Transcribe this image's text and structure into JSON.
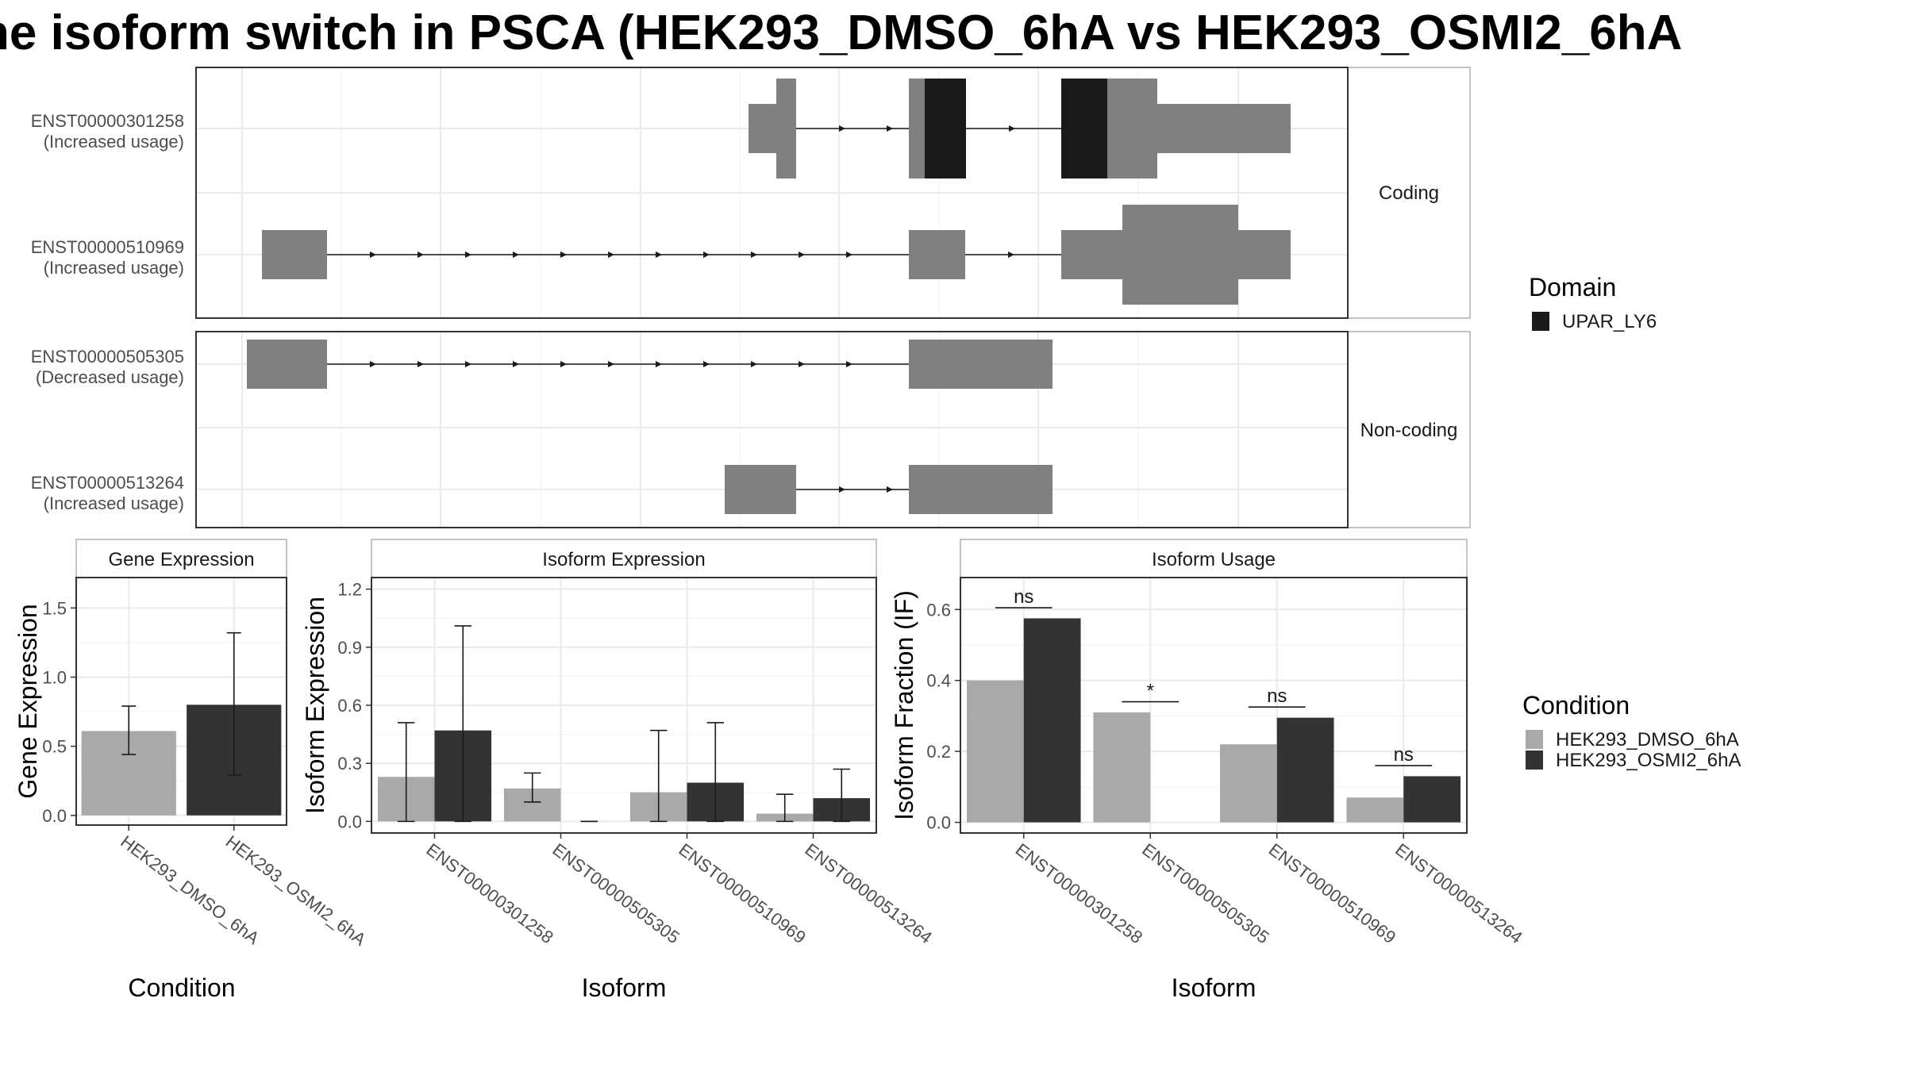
{
  "title": "he isoform switch in PSCA (HEK293_DMSO_6hA vs HEK293_OSMI2_6hA",
  "colors": {
    "exon": "#808080",
    "domain": "#1a1a1a",
    "dmso": "#a9a9a9",
    "osmi": "#333333"
  },
  "structure": {
    "facets": [
      "Coding",
      "Non-coding"
    ],
    "isoforms": [
      {
        "id": "ENST00000301258",
        "status": "(Increased usage)",
        "facet": "Coding"
      },
      {
        "id": "ENST00000510969",
        "status": "(Increased usage)",
        "facet": "Coding"
      },
      {
        "id": "ENST00000505305",
        "status": "(Decreased usage)",
        "facet": "Non-coding"
      },
      {
        "id": "ENST00000513264",
        "status": "(Increased usage)",
        "facet": "Non-coding"
      }
    ]
  },
  "legend_domain": {
    "title": "Domain",
    "items": [
      {
        "label": "UPAR_LY6",
        "color": "#1a1a1a"
      }
    ]
  },
  "legend_condition": {
    "title": "Condition",
    "items": [
      {
        "label": "HEK293_DMSO_6hA",
        "color": "#a9a9a9"
      },
      {
        "label": "HEK293_OSMI2_6hA",
        "color": "#333333"
      }
    ]
  },
  "chart_data": [
    {
      "type": "bar",
      "title": "Gene Expression",
      "xlabel": "Condition",
      "ylabel": "Gene Expression",
      "ylim": [
        -0.07,
        1.72
      ],
      "yticks": [
        0.0,
        0.5,
        1.0,
        1.5
      ],
      "categories": [
        "HEK293_DMSO_6hA",
        "HEK293_OSMI2_6hA"
      ],
      "values": [
        0.61,
        0.8
      ],
      "error_low": [
        0.44,
        0.29
      ],
      "error_high": [
        0.79,
        1.32
      ]
    },
    {
      "type": "bar",
      "title": "Isoform Expression",
      "xlabel": "Isoform",
      "ylabel": "Isoform Expression",
      "ylim": [
        -0.06,
        1.26
      ],
      "yticks": [
        0.0,
        0.3,
        0.6,
        0.9,
        1.2
      ],
      "categories": [
        "ENST00000301258",
        "ENST00000505305",
        "ENST00000510969",
        "ENST00000513264"
      ],
      "series": [
        {
          "name": "HEK293_DMSO_6hA",
          "values": [
            0.23,
            0.17,
            0.15,
            0.04
          ],
          "error_low": [
            0.0,
            0.1,
            0.0,
            0.0
          ],
          "error_high": [
            0.51,
            0.25,
            0.47,
            0.14
          ]
        },
        {
          "name": "HEK293_OSMI2_6hA",
          "values": [
            0.47,
            0.0,
            0.2,
            0.12
          ],
          "error_low": [
            0.0,
            0.0,
            0.0,
            0.0
          ],
          "error_high": [
            1.01,
            0.0,
            0.51,
            0.27
          ]
        }
      ]
    },
    {
      "type": "bar",
      "title": "Isoform Usage",
      "xlabel": "Isoform",
      "ylabel": "Isoform Fraction (IF)",
      "ylim": [
        -0.03,
        0.69
      ],
      "yticks": [
        0.0,
        0.2,
        0.4,
        0.6
      ],
      "categories": [
        "ENST00000301258",
        "ENST00000505305",
        "ENST00000510969",
        "ENST00000513264"
      ],
      "series": [
        {
          "name": "HEK293_DMSO_6hA",
          "values": [
            0.4,
            0.31,
            0.22,
            0.07
          ]
        },
        {
          "name": "HEK293_OSMI2_6hA",
          "values": [
            0.575,
            0.0,
            0.295,
            0.13
          ]
        }
      ],
      "significance": [
        {
          "label": "ns",
          "y": 0.605
        },
        {
          "label": "*",
          "y": 0.34
        },
        {
          "label": "ns",
          "y": 0.325
        },
        {
          "label": "ns",
          "y": 0.16
        }
      ]
    }
  ]
}
